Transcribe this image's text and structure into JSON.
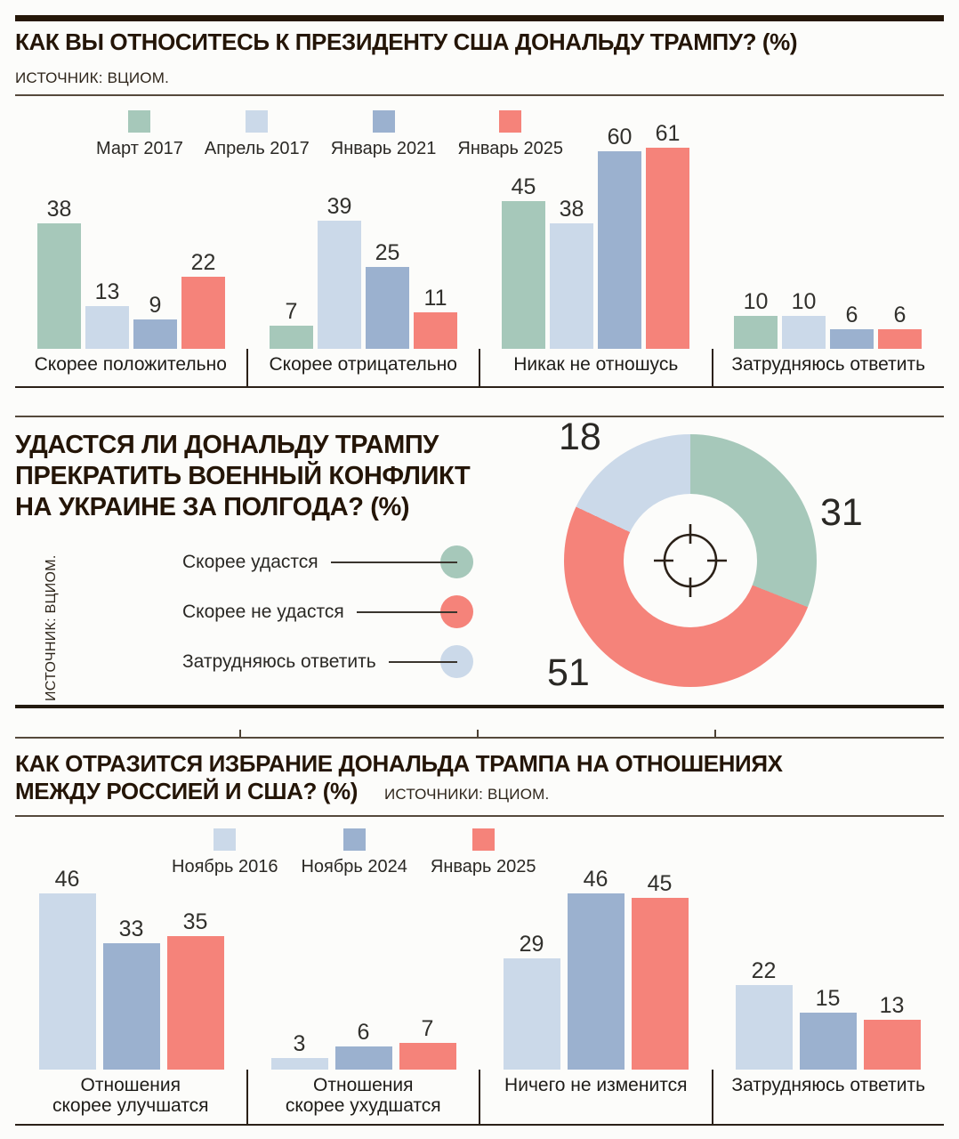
{
  "page": {
    "background": "#fcfcfa",
    "text_color": "#241a10",
    "rule_color": "#55493c",
    "accent_dark": "#2b2118"
  },
  "chart_data": [
    {
      "type": "bar",
      "title": "КАК ВЫ ОТНОСИТЕСЬ К ПРЕЗИДЕНТУ США ДОНАЛЬДУ ТРАМПУ? (%)",
      "source": "ИСТОЧНИК: ВЦИОМ.",
      "unit": "%",
      "categories": [
        "Скорее положительно",
        "Скорее отрицательно",
        "Никак не отношусь",
        "Затрудняюсь ответить"
      ],
      "series": [
        {
          "name": "Март 2017",
          "color": "#a6c8ba",
          "values": [
            38,
            7,
            45,
            10
          ]
        },
        {
          "name": "Апрель 2017",
          "color": "#cbd9e9",
          "values": [
            13,
            39,
            38,
            10
          ]
        },
        {
          "name": "Январь 2021",
          "color": "#9bb1cf",
          "values": [
            9,
            25,
            60,
            6
          ]
        },
        {
          "name": "Январь 2025",
          "color": "#f5837a",
          "values": [
            22,
            11,
            61,
            6
          ]
        }
      ],
      "ylim": [
        0,
        61
      ],
      "grid": false,
      "legend_position": "top-left"
    },
    {
      "type": "donut",
      "title": "УДАСТСЯ  ЛИ ДОНАЛЬДУ ТРАМПУ ПРЕКРАТИТЬ ВОЕННЫЙ КОНФЛИКТ НА УКРАИНЕ ЗА ПОЛГОДА? (%)",
      "title_lines": [
        "УДАСТСЯ  ЛИ ДОНАЛЬДУ ТРАМПУ",
        "ПРЕКРАТИТЬ ВОЕННЫЙ КОНФЛИКТ",
        "НА УКРАИНЕ ЗА ПОЛГОДА? (%)"
      ],
      "source": "ИСТОЧНИК: ВЦИОМ.",
      "unit": "%",
      "slices": [
        {
          "label": "Скорее удастся",
          "value": 31,
          "color": "#a6c8ba"
        },
        {
          "label": "Скорее не удастся",
          "value": 51,
          "color": "#f5837a"
        },
        {
          "label": "Затрудняюсь ответить",
          "value": 18,
          "color": "#cbd9e9"
        }
      ],
      "start_angle_deg": 0,
      "direction": "clockwise",
      "center_icon": "crosshair-icon",
      "legend_position": "left"
    },
    {
      "type": "bar",
      "title": "КАК ОТРАЗИТСЯ ИЗБРАНИЕ ДОНАЛЬДА ТРАМПА НА ОТНОШЕНИЯХ МЕЖДУ РОССИЕЙ И США? (%)",
      "title_lines": [
        "КАК ОТРАЗИТСЯ ИЗБРАНИЕ ДОНАЛЬДА ТРАМПА НА ОТНОШЕНИЯХ",
        "МЕЖДУ РОССИЕЙ И США? (%)"
      ],
      "source": "ИСТОЧНИКИ: ВЦИОМ.",
      "unit": "%",
      "categories": [
        "Отношения\nскорее улучшатся",
        "Отношения\nскорее ухудшатся",
        "Ничего не изменится",
        "Затрудняюсь ответить"
      ],
      "series": [
        {
          "name": "Ноябрь 2016",
          "color": "#cbd9e9",
          "values": [
            46,
            3,
            29,
            22
          ]
        },
        {
          "name": "Ноябрь 2024",
          "color": "#9bb1cf",
          "values": [
            33,
            6,
            46,
            15
          ]
        },
        {
          "name": "Январь 2025",
          "color": "#f5837a",
          "values": [
            35,
            7,
            45,
            13
          ]
        }
      ],
      "ylim": [
        0,
        46
      ],
      "grid": false,
      "legend_position": "top-center"
    }
  ]
}
